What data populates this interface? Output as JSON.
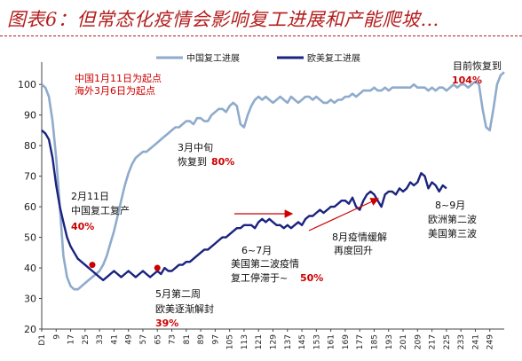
{
  "title": "图表6：但常态化疫情会影响复工进展和产能爬坡…",
  "chart_data": {
    "type": "line",
    "ylim": [
      20,
      105
    ],
    "yticks": [
      20,
      30,
      40,
      50,
      60,
      70,
      80,
      90,
      100
    ],
    "x_tick_labels": [
      "D1",
      "9",
      "17",
      "25",
      "33",
      "41",
      "49",
      "57",
      "65",
      "73",
      "81",
      "89",
      "97",
      "105",
      "113",
      "121",
      "129",
      "137",
      "145",
      "153",
      "161",
      "169",
      "177",
      "185",
      "193",
      "201",
      "209",
      "217",
      "225",
      "233",
      "241",
      "249"
    ],
    "x_tick_positions": [
      1,
      9,
      17,
      25,
      33,
      41,
      49,
      57,
      65,
      73,
      81,
      89,
      97,
      105,
      113,
      121,
      129,
      137,
      145,
      153,
      161,
      169,
      177,
      185,
      193,
      201,
      209,
      217,
      225,
      233,
      241,
      249
    ],
    "legend": {
      "position": "top",
      "series_colors": {
        "china": "#8fabcc",
        "euus": "#1a237e"
      }
    },
    "series": [
      {
        "name": "中国复工进展",
        "key": "china",
        "color": "#8fabcc",
        "points": [
          [
            1,
            100
          ],
          [
            3,
            99
          ],
          [
            5,
            96
          ],
          [
            7,
            88
          ],
          [
            9,
            76
          ],
          [
            11,
            60
          ],
          [
            13,
            44
          ],
          [
            15,
            37
          ],
          [
            17,
            34
          ],
          [
            19,
            33
          ],
          [
            21,
            33
          ],
          [
            23,
            34
          ],
          [
            25,
            35
          ],
          [
            27,
            36
          ],
          [
            29,
            37
          ],
          [
            31,
            38
          ],
          [
            33,
            39
          ],
          [
            35,
            41
          ],
          [
            37,
            44
          ],
          [
            39,
            48
          ],
          [
            41,
            52
          ],
          [
            43,
            57
          ],
          [
            45,
            62
          ],
          [
            47,
            67
          ],
          [
            49,
            71
          ],
          [
            51,
            74
          ],
          [
            53,
            76
          ],
          [
            55,
            77
          ],
          [
            57,
            78
          ],
          [
            59,
            78
          ],
          [
            61,
            79
          ],
          [
            63,
            80
          ],
          [
            65,
            81
          ],
          [
            67,
            82
          ],
          [
            69,
            83
          ],
          [
            71,
            84
          ],
          [
            73,
            85
          ],
          [
            75,
            86
          ],
          [
            77,
            86
          ],
          [
            79,
            87
          ],
          [
            81,
            88
          ],
          [
            83,
            88
          ],
          [
            85,
            87
          ],
          [
            87,
            89
          ],
          [
            89,
            89
          ],
          [
            91,
            88
          ],
          [
            93,
            88
          ],
          [
            95,
            90
          ],
          [
            97,
            91
          ],
          [
            99,
            92
          ],
          [
            101,
            92
          ],
          [
            103,
            91
          ],
          [
            105,
            93
          ],
          [
            107,
            94
          ],
          [
            109,
            93
          ],
          [
            111,
            87
          ],
          [
            113,
            86
          ],
          [
            115,
            90
          ],
          [
            117,
            93
          ],
          [
            119,
            95
          ],
          [
            121,
            96
          ],
          [
            123,
            95
          ],
          [
            125,
            96
          ],
          [
            127,
            95
          ],
          [
            129,
            94
          ],
          [
            131,
            95
          ],
          [
            133,
            96
          ],
          [
            135,
            95
          ],
          [
            137,
            94
          ],
          [
            139,
            96
          ],
          [
            141,
            95
          ],
          [
            143,
            94
          ],
          [
            145,
            95
          ],
          [
            147,
            96
          ],
          [
            149,
            96
          ],
          [
            151,
            95
          ],
          [
            153,
            96
          ],
          [
            155,
            95
          ],
          [
            157,
            94
          ],
          [
            159,
            94
          ],
          [
            161,
            95
          ],
          [
            163,
            94
          ],
          [
            165,
            95
          ],
          [
            167,
            95
          ],
          [
            169,
            96
          ],
          [
            171,
            96
          ],
          [
            173,
            97
          ],
          [
            175,
            96
          ],
          [
            177,
            97
          ],
          [
            179,
            98
          ],
          [
            181,
            98
          ],
          [
            183,
            98
          ],
          [
            185,
            99
          ],
          [
            187,
            98
          ],
          [
            189,
            98
          ],
          [
            191,
            99
          ],
          [
            193,
            98
          ],
          [
            195,
            99
          ],
          [
            197,
            99
          ],
          [
            199,
            99
          ],
          [
            201,
            99
          ],
          [
            203,
            99
          ],
          [
            205,
            99
          ],
          [
            207,
            100
          ],
          [
            209,
            99
          ],
          [
            211,
            99
          ],
          [
            213,
            99
          ],
          [
            215,
            98
          ],
          [
            217,
            99
          ],
          [
            219,
            98
          ],
          [
            221,
            99
          ],
          [
            223,
            99
          ],
          [
            225,
            98
          ],
          [
            227,
            99
          ],
          [
            229,
            100
          ],
          [
            231,
            99
          ],
          [
            233,
            100
          ],
          [
            235,
            100
          ],
          [
            237,
            99
          ],
          [
            239,
            100
          ],
          [
            241,
            101
          ],
          [
            243,
            100
          ],
          [
            245,
            92
          ],
          [
            247,
            86
          ],
          [
            249,
            85
          ],
          [
            251,
            92
          ],
          [
            253,
            100
          ],
          [
            255,
            103
          ],
          [
            257,
            104
          ]
        ]
      },
      {
        "name": "欧美复工进展",
        "key": "euus",
        "color": "#1a237e",
        "points": [
          [
            1,
            85
          ],
          [
            3,
            84
          ],
          [
            5,
            82
          ],
          [
            7,
            76
          ],
          [
            9,
            67
          ],
          [
            11,
            60
          ],
          [
            13,
            55
          ],
          [
            15,
            50
          ],
          [
            17,
            47
          ],
          [
            19,
            45
          ],
          [
            21,
            43
          ],
          [
            23,
            42
          ],
          [
            25,
            41
          ],
          [
            27,
            40
          ],
          [
            29,
            39
          ],
          [
            31,
            38
          ],
          [
            33,
            37
          ],
          [
            35,
            36
          ],
          [
            37,
            37
          ],
          [
            39,
            38
          ],
          [
            41,
            39
          ],
          [
            43,
            38
          ],
          [
            45,
            37
          ],
          [
            47,
            38
          ],
          [
            49,
            39
          ],
          [
            51,
            38
          ],
          [
            53,
            37
          ],
          [
            55,
            38
          ],
          [
            57,
            39
          ],
          [
            59,
            38
          ],
          [
            61,
            37
          ],
          [
            63,
            38
          ],
          [
            65,
            39
          ],
          [
            67,
            38
          ],
          [
            69,
            40
          ],
          [
            71,
            39
          ],
          [
            73,
            39
          ],
          [
            75,
            40
          ],
          [
            77,
            41
          ],
          [
            79,
            41
          ],
          [
            81,
            42
          ],
          [
            83,
            42
          ],
          [
            85,
            43
          ],
          [
            87,
            44
          ],
          [
            89,
            45
          ],
          [
            91,
            46
          ],
          [
            93,
            46
          ],
          [
            95,
            47
          ],
          [
            97,
            48
          ],
          [
            99,
            49
          ],
          [
            101,
            50
          ],
          [
            103,
            50
          ],
          [
            105,
            51
          ],
          [
            107,
            52
          ],
          [
            109,
            53
          ],
          [
            111,
            53
          ],
          [
            113,
            54
          ],
          [
            115,
            54
          ],
          [
            117,
            54
          ],
          [
            119,
            53
          ],
          [
            121,
            55
          ],
          [
            123,
            56
          ],
          [
            125,
            55
          ],
          [
            127,
            56
          ],
          [
            129,
            55
          ],
          [
            131,
            54
          ],
          [
            133,
            54
          ],
          [
            135,
            53
          ],
          [
            137,
            54
          ],
          [
            139,
            53
          ],
          [
            141,
            54
          ],
          [
            143,
            55
          ],
          [
            145,
            54
          ],
          [
            147,
            56
          ],
          [
            149,
            57
          ],
          [
            151,
            57
          ],
          [
            153,
            58
          ],
          [
            155,
            59
          ],
          [
            157,
            58
          ],
          [
            159,
            59
          ],
          [
            161,
            60
          ],
          [
            163,
            60
          ],
          [
            165,
            61
          ],
          [
            167,
            62
          ],
          [
            169,
            62
          ],
          [
            171,
            61
          ],
          [
            173,
            63
          ],
          [
            175,
            60
          ],
          [
            177,
            59
          ],
          [
            179,
            62
          ],
          [
            181,
            64
          ],
          [
            183,
            65
          ],
          [
            185,
            64
          ],
          [
            187,
            62
          ],
          [
            189,
            60
          ],
          [
            191,
            64
          ],
          [
            193,
            65
          ],
          [
            195,
            65
          ],
          [
            197,
            64
          ],
          [
            199,
            66
          ],
          [
            201,
            65
          ],
          [
            203,
            66
          ],
          [
            205,
            68
          ],
          [
            207,
            67
          ],
          [
            209,
            68
          ],
          [
            211,
            71
          ],
          [
            213,
            70
          ],
          [
            215,
            66
          ],
          [
            217,
            68
          ],
          [
            219,
            67
          ],
          [
            221,
            65
          ],
          [
            223,
            67
          ],
          [
            225,
            66
          ]
        ]
      }
    ],
    "annotations": {
      "start_note": {
        "line1": "中国1月11日为起点",
        "line2": "海外3月6日为起点",
        "color": "#cc0000"
      },
      "feb": {
        "line1": "2月11日",
        "line2": "中国复工复产",
        "value": "40%",
        "x": 29,
        "y": 41
      },
      "mar": {
        "line1": "3月中旬",
        "line2": "恢复到",
        "value": "80%"
      },
      "may": {
        "line1": "5月第二周",
        "line2": "欧美逐渐解封",
        "value": "39%",
        "x": 65,
        "y": 40
      },
      "junjul": {
        "line1": "6~7月",
        "line2": "美国第二波疫情",
        "line3_prefix": "复工停滞于~",
        "value": "50%"
      },
      "aug": {
        "line1": "8月疫情缓解",
        "line2": "再度回升"
      },
      "sepn": {
        "line1": "8~9月",
        "line2": "欧洲第二波",
        "line3": "美国第三波"
      },
      "now": {
        "line1": "目前恢复到",
        "value": "104%"
      },
      "highlight_color": "#cc0000"
    }
  }
}
